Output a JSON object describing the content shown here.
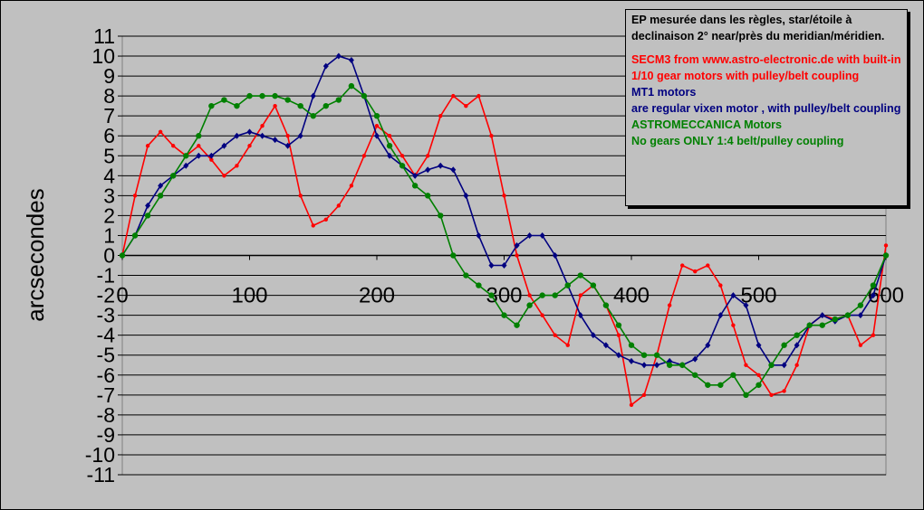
{
  "chart_data": {
    "type": "line",
    "ylabel": "arcsecondes",
    "xlim": [
      0,
      600
    ],
    "ylim": [
      -11,
      11
    ],
    "xticks": [
      "0",
      "100",
      "200",
      "300",
      "400",
      "500",
      "600"
    ],
    "yticks": [
      "11",
      "10",
      "9",
      "8",
      "7",
      "6",
      "5",
      "4",
      "3",
      "2",
      "1",
      "0",
      "-1",
      "-2",
      "-3",
      "-4",
      "-5",
      "-6",
      "-7",
      "-8",
      "-9",
      "-10",
      "-11"
    ],
    "grid": true,
    "legend_position": "top-right",
    "annotation": {
      "header": "EP mesurée dans les règles, star/étoile à declinaison 2° near/près du meridian/méridien.",
      "secm3": "SECM3 from www.astro-electronic.de with built-in 1/10 gear motors with pulley/belt coupling",
      "mt1_title": "MT1 motors",
      "mt1_desc": "are regular vixen motor , with pulley/belt coupling",
      "astro_title": "ASTROMECCANICA Motors",
      "astro_desc": "No gears  ONLY 1:4 belt/pulley coupling"
    },
    "series": [
      {
        "color": "#ff0000",
        "marker": "circle",
        "x": [
          0,
          10,
          20,
          30,
          40,
          50,
          60,
          70,
          80,
          90,
          100,
          110,
          120,
          130,
          140,
          150,
          160,
          170,
          180,
          190,
          200,
          210,
          220,
          230,
          240,
          250,
          260,
          270,
          280,
          290,
          300,
          310,
          320,
          330,
          340,
          350,
          360,
          370,
          380,
          390,
          400,
          410,
          420,
          430,
          440,
          450,
          460,
          470,
          480,
          490,
          500,
          510,
          520,
          530,
          540,
          550,
          560,
          570,
          580,
          590,
          600
        ],
        "y": [
          0,
          3,
          5.5,
          6.2,
          5.5,
          5,
          5.5,
          4.8,
          4,
          4.5,
          5.5,
          6.5,
          7.5,
          6,
          3,
          1.5,
          1.8,
          2.5,
          3.5,
          5,
          6.5,
          6,
          5,
          4,
          5,
          7,
          8,
          7.5,
          8,
          6,
          3,
          0,
          -2,
          -3,
          -4,
          -4.5,
          -2,
          -1.5,
          -2.5,
          -4,
          -7.5,
          -7,
          -5,
          -2.5,
          -0.5,
          -0.8,
          -0.5,
          -1.5,
          -3.5,
          -5.5,
          -6,
          -7,
          -6.8,
          -5.5,
          -3.5,
          -3,
          -3.2,
          -3,
          -4.5,
          -4,
          0.5
        ]
      },
      {
        "color": "#000080",
        "marker": "diamond",
        "x": [
          0,
          10,
          20,
          30,
          40,
          50,
          60,
          70,
          80,
          90,
          100,
          110,
          120,
          130,
          140,
          150,
          160,
          170,
          180,
          190,
          200,
          210,
          220,
          230,
          240,
          250,
          260,
          270,
          280,
          290,
          300,
          310,
          320,
          330,
          340,
          350,
          360,
          370,
          380,
          390,
          400,
          410,
          420,
          430,
          440,
          450,
          460,
          470,
          480,
          490,
          500,
          510,
          520,
          530,
          540,
          550,
          560,
          570,
          580,
          590,
          600
        ],
        "y": [
          0,
          1,
          2.5,
          3.5,
          4,
          4.5,
          5,
          5,
          5.5,
          6,
          6.2,
          6,
          5.8,
          5.5,
          6,
          8,
          9.5,
          10,
          9.8,
          8,
          6,
          5,
          4.5,
          4,
          4.3,
          4.5,
          4.3,
          3,
          1,
          -0.5,
          -0.5,
          0.5,
          1,
          1,
          0,
          -1.5,
          -3,
          -4,
          -4.5,
          -5,
          -5.3,
          -5.5,
          -5.5,
          -5.3,
          -5.5,
          -5.2,
          -4.5,
          -3,
          -2,
          -2.5,
          -4.5,
          -5.5,
          -5.5,
          -4.5,
          -3.5,
          -3,
          -3.3,
          -3,
          -3,
          -2,
          0
        ]
      },
      {
        "color": "#008000",
        "marker": "circle",
        "x": [
          0,
          10,
          20,
          30,
          40,
          50,
          60,
          70,
          80,
          90,
          100,
          110,
          120,
          130,
          140,
          150,
          160,
          170,
          180,
          190,
          200,
          210,
          220,
          230,
          240,
          250,
          260,
          270,
          280,
          290,
          300,
          310,
          320,
          330,
          340,
          350,
          360,
          370,
          380,
          390,
          400,
          410,
          420,
          430,
          440,
          450,
          460,
          470,
          480,
          490,
          500,
          510,
          520,
          530,
          540,
          550,
          560,
          570,
          580,
          590,
          600
        ],
        "y": [
          0,
          1,
          2,
          3,
          4,
          5,
          6,
          7.5,
          7.8,
          7.5,
          8,
          8,
          8,
          7.8,
          7.5,
          7,
          7.5,
          7.8,
          8.5,
          8,
          7,
          5.5,
          4.5,
          3.5,
          3,
          2,
          0,
          -1,
          -1.5,
          -2,
          -3,
          -3.5,
          -2.5,
          -2,
          -2,
          -1.5,
          -1,
          -1.5,
          -2.5,
          -3.5,
          -4.5,
          -5,
          -5,
          -5.5,
          -5.5,
          -6,
          -6.5,
          -6.5,
          -6,
          -7,
          -6.5,
          -5.5,
          -4.5,
          -4,
          -3.5,
          -3.5,
          -3.2,
          -3,
          -2.5,
          -1.5,
          0
        ]
      }
    ]
  }
}
